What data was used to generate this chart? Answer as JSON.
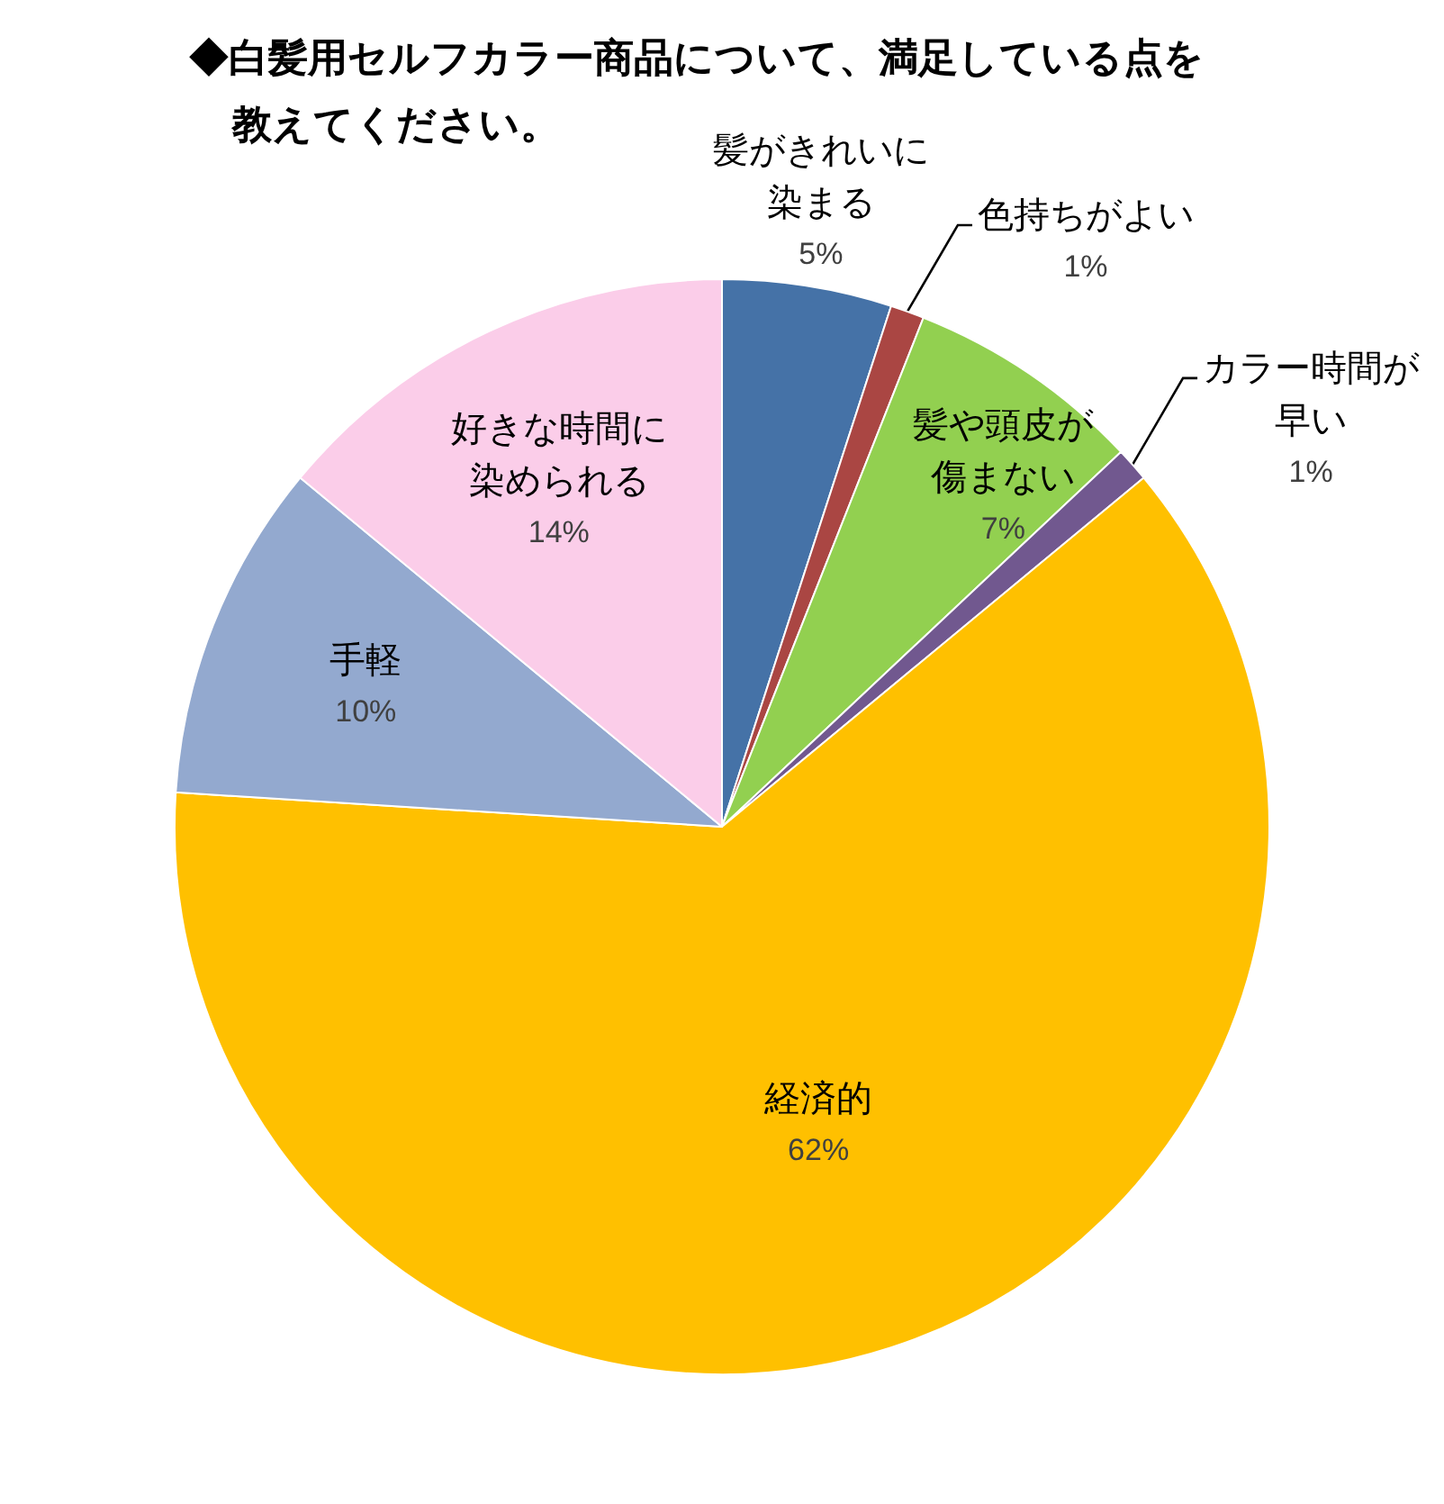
{
  "chart_data": {
    "type": "pie",
    "title": "◆白髪用セルフカラー商品について、満足している点を教えてください。",
    "categories": [
      "髪がきれいに染まる",
      "色持ちがよい",
      "髪や頭皮が傷まない",
      "カラー時間が早い",
      "経済的",
      "手軽",
      "好きな時間に染められる"
    ],
    "values": [
      5,
      1,
      7,
      1,
      62,
      10,
      14
    ],
    "value_labels": [
      "5%",
      "1%",
      "7%",
      "1%",
      "62%",
      "10%",
      "14%"
    ],
    "colors": [
      "#4572a7",
      "#aa4643",
      "#92d050",
      "#71588f",
      "#ffc000",
      "#93a9cf",
      "#fbcde9"
    ],
    "legend": false
  }
}
